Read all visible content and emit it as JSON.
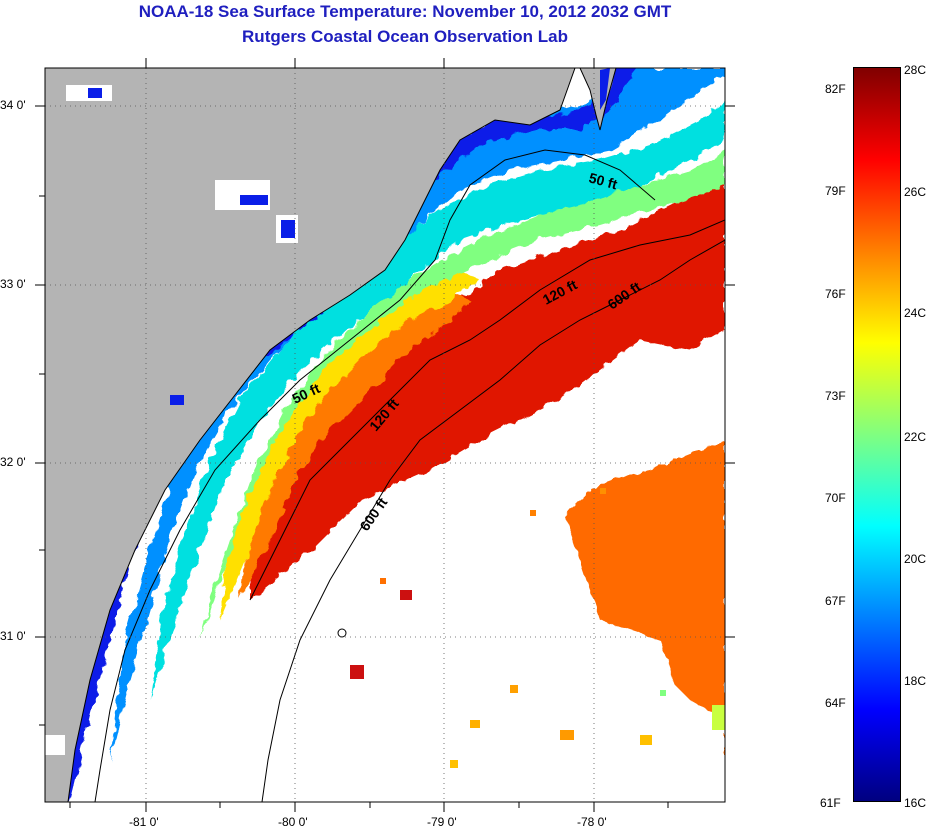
{
  "header": {
    "title": "NOAA-18 Sea Surface Temperature:  November 10, 2012 2032 GMT",
    "subtitle": "Rutgers Coastal Ocean Observation Lab"
  },
  "map": {
    "lon_range": [
      -81.67,
      -77.2
    ],
    "lat_range": [
      30.12,
      34.22
    ],
    "lon_ticks": [
      {
        "value": -81,
        "label": "-81 0'"
      },
      {
        "value": -80,
        "label": "-80 0'"
      },
      {
        "value": -79,
        "label": "-79 0'"
      },
      {
        "value": -78,
        "label": "-78 0'"
      }
    ],
    "lat_ticks": [
      {
        "value": 34,
        "label": "34 0'"
      },
      {
        "value": 33,
        "label": "33 0'"
      },
      {
        "value": 32,
        "label": "32 0'"
      },
      {
        "value": 31,
        "label": "31 0'"
      }
    ],
    "contour_labels": {
      "c50_north": "50 ft",
      "c50_south": "50 ft",
      "c120_north": "120 ft",
      "c120_south": "120 ft",
      "c600_north": "600 ft",
      "c600_south": "600 ft"
    },
    "colors": {
      "land": "#b4b4b4",
      "no_data": "#ffffff",
      "contour": "#000000",
      "grid": "#555555"
    }
  },
  "colorbar": {
    "scale_c": [
      16,
      28
    ],
    "scale_f": [
      61,
      82
    ],
    "celsius_labels": [
      "28C",
      "26C",
      "24C",
      "22C",
      "20C",
      "18C",
      "16C"
    ],
    "fahrenheit_labels": [
      "82F",
      "79F",
      "76F",
      "73F",
      "70F",
      "67F",
      "64F",
      "61F"
    ],
    "stops": [
      "#000080",
      "#0000ff",
      "#0080ff",
      "#00ffff",
      "#80ff80",
      "#ffff00",
      "#ff8000",
      "#ff0000",
      "#800000"
    ]
  }
}
